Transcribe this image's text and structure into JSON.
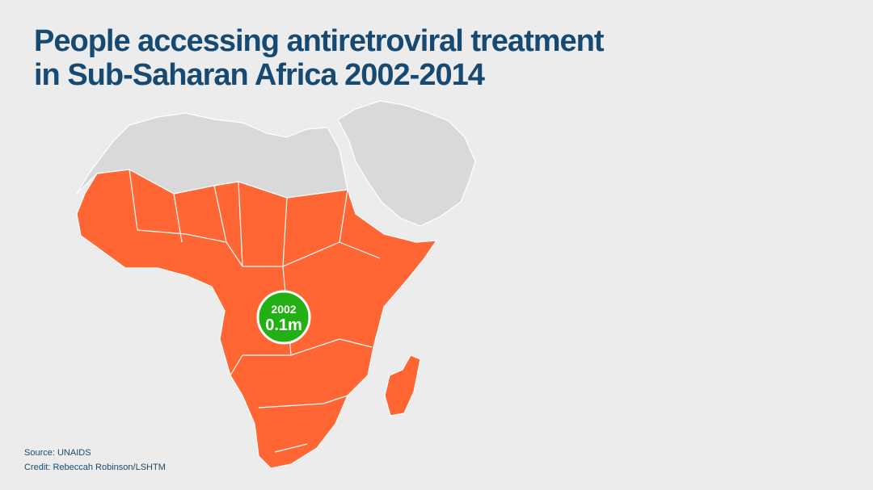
{
  "header": {
    "title_lines": [
      "People accessing antiretroviral treatment",
      "in Sub-Saharan Africa 2002-2014"
    ]
  },
  "bubble": {
    "year": "2002",
    "value": "0.1m"
  },
  "footer": {
    "source": "Source: UNAIDS",
    "credit": "Credit: Rebeccah Robinson/LSHTM"
  }
}
